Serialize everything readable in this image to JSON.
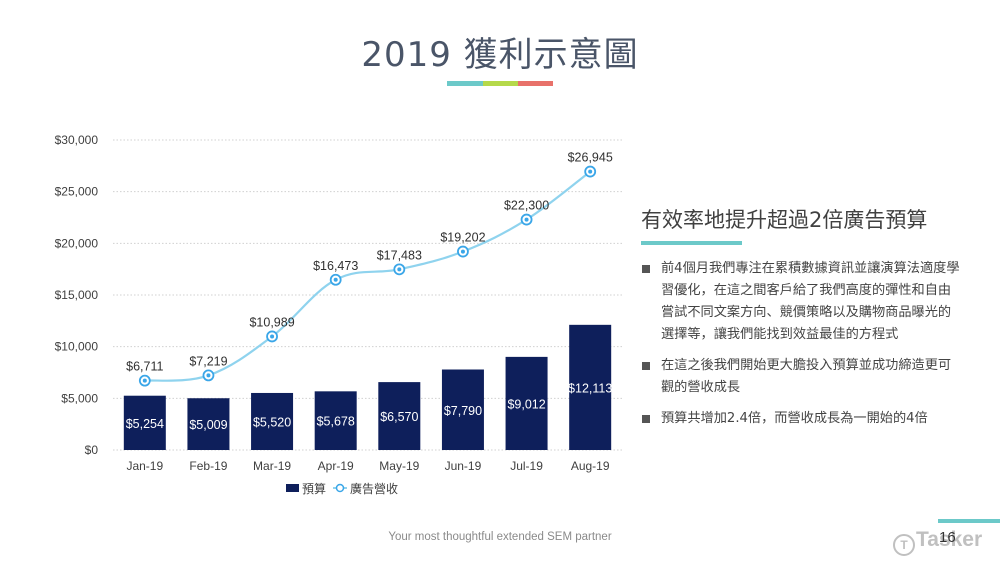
{
  "slide": {
    "title": "2019 獲利示意圖",
    "title_bar_colors": [
      "#6cc9c9",
      "#b5d94a",
      "#e8716a"
    ],
    "footer": "Your most thoughtful extended SEM partner",
    "page_number": "16",
    "logo_text": "Tasker",
    "corner_bar_color": "#6cc9c9"
  },
  "side_panel": {
    "heading": "有效率地提升超過2倍廣告預算",
    "rule_color": "#6cc9c9",
    "bullets": [
      "前4個月我們專注在累積數據資訊並讓演算法適度學習優化，在這之間客戶給了我們高度的彈性和自由嘗試不同文案方向、競價策略以及購物商品曝光的選擇等，讓我們能找到效益最佳的方程式",
      "在這之後我們開始更大膽投入預算並成功締造更可觀的營收成長",
      "預算共增加2.4倍，而營收成長為一開始的4倍"
    ]
  },
  "chart_data": {
    "type": "bar",
    "title": "",
    "xlabel": "",
    "ylabel": "",
    "categories": [
      "Jan-19",
      "Feb-19",
      "Mar-19",
      "Apr-19",
      "May-19",
      "Jun-19",
      "Jul-19",
      "Aug-19"
    ],
    "ylim": [
      0,
      30000
    ],
    "yticks": [
      0,
      5000,
      10000,
      15000,
      20000,
      25000,
      30000
    ],
    "ytick_labels": [
      "$0",
      "$5,000",
      "$10,000",
      "$15,000",
      "$20,000",
      "$25,000",
      "$30,000"
    ],
    "grid": true,
    "legend_position": "bottom",
    "series": [
      {
        "name": "預算",
        "type": "bar",
        "color": "#0e1f5b",
        "values": [
          5254,
          5009,
          5520,
          5678,
          6570,
          7790,
          9012,
          12113
        ],
        "labels": [
          "$5,254",
          "$5,009",
          "$5,520",
          "$5,678",
          "$6,570",
          "$7,790",
          "$9,012",
          "$12,113"
        ]
      },
      {
        "name": "廣告營收",
        "type": "line",
        "color": "#8fd3ee",
        "marker_color": "#3aa6e8",
        "values": [
          6711,
          7219,
          10989,
          16473,
          17483,
          19202,
          22300,
          26945
        ],
        "labels": [
          "$6,711",
          "$7,219",
          "$10,989",
          "$16,473",
          "$17,483",
          "$19,202",
          "$22,300",
          "$26,945"
        ]
      }
    ]
  }
}
